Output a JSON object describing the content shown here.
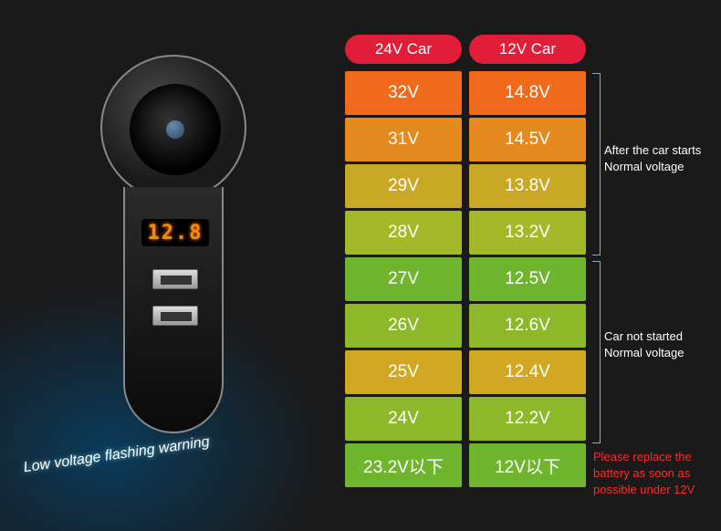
{
  "device": {
    "display_value": "12.8"
  },
  "warning_text": "Low voltage flashing warning",
  "headers": {
    "col1": "24V Car",
    "col2": "12V Car",
    "bg": "#e11d3a"
  },
  "rows": [
    {
      "c1": "32V",
      "c2": "14.8V",
      "bg1": "#f06a1c",
      "bg2": "#f06a1c"
    },
    {
      "c1": "31V",
      "c2": "14.5V",
      "bg1": "#e58a1e",
      "bg2": "#e58a1e"
    },
    {
      "c1": "29V",
      "c2": "13.8V",
      "bg1": "#c8a824",
      "bg2": "#c8a824"
    },
    {
      "c1": "28V",
      "c2": "13.2V",
      "bg1": "#a5b82a",
      "bg2": "#a5b82a"
    },
    {
      "c1": "27V",
      "c2": "12.5V",
      "bg1": "#6fb52e",
      "bg2": "#6fb52e"
    },
    {
      "c1": "26V",
      "c2": "12.6V",
      "bg1": "#8db82a",
      "bg2": "#8db82a"
    },
    {
      "c1": "25V",
      "c2": "12.4V",
      "bg1": "#d0a822",
      "bg2": "#d0a822"
    },
    {
      "c1": "24V",
      "c2": "12.2V",
      "bg1": "#8db82a",
      "bg2": "#8db82a"
    },
    {
      "c1": "23.2V以下",
      "c2": "12V以下",
      "bg1": "#6fb52e",
      "bg2": "#6fb52e"
    }
  ],
  "annotations": {
    "started": "After the car starts\nNormal voltage",
    "notstarted": "Car not started\nNormal voltage",
    "replace": "Please replace the\nbattery as soon as\npossible under 12V"
  }
}
